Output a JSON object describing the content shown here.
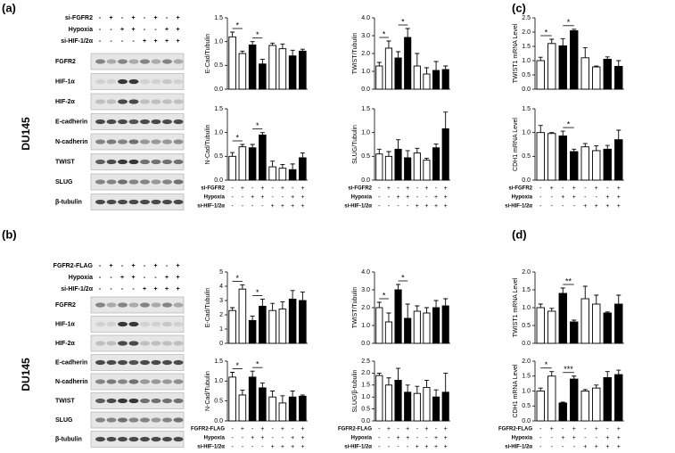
{
  "figure": {
    "panel_labels": [
      "(a)",
      "(b)",
      "(c)",
      "(d)"
    ],
    "blots": [
      {
        "cell_line": "DU145",
        "conditions": [
          {
            "label": "si-FGFR2",
            "signs": [
              "-",
              "+",
              "-",
              "+",
              "-",
              "+",
              "-",
              "+"
            ]
          },
          {
            "label": "Hypoxia",
            "signs": [
              "-",
              "-",
              "+",
              "+",
              "-",
              "-",
              "+",
              "+"
            ]
          },
          {
            "label": "si-HIF-1/2α",
            "signs": [
              "-",
              "-",
              "-",
              "-",
              "+",
              "+",
              "+",
              "+"
            ]
          }
        ],
        "rows": [
          "FGFR2",
          "HIF-1α",
          "HIF-2α",
          "E-cadherin",
          "N-cadherin",
          "TWIST",
          "SLUG",
          "β-tubulin"
        ]
      },
      {
        "cell_line": "DU145",
        "conditions": [
          {
            "label": "FGFR2-FLAG",
            "signs": [
              "-",
              "+",
              "-",
              "+",
              "-",
              "+",
              "-",
              "+"
            ]
          },
          {
            "label": "Hypoxia",
            "signs": [
              "-",
              "-",
              "+",
              "+",
              "-",
              "-",
              "+",
              "+"
            ]
          },
          {
            "label": "si-HIF-1/2α",
            "signs": [
              "-",
              "-",
              "-",
              "-",
              "+",
              "+",
              "+",
              "+"
            ]
          }
        ],
        "rows": [
          "FGFR2",
          "HIF-1α",
          "HIF-2α",
          "E-cadherin",
          "N-cadherin",
          "TWIST",
          "SLUG",
          "β-tubulin"
        ]
      }
    ]
  },
  "chart_data": [
    {
      "type": "bar",
      "ylabel": "E-Cad/Tubulin",
      "values": [
        1.1,
        0.75,
        0.93,
        0.53,
        0.92,
        0.85,
        0.7,
        0.8
      ],
      "errors": [
        0.1,
        0.05,
        0.07,
        0.1,
        0.05,
        0.1,
        0.12,
        0.04
      ],
      "colors": [
        "#ffffff",
        "#ffffff",
        "#000000",
        "#000000",
        "#ffffff",
        "#ffffff",
        "#000000",
        "#000000"
      ],
      "ylim": [
        0,
        1.5
      ],
      "yticks": [
        {
          "value": 0,
          "label": "0.0"
        },
        {
          "value": 0.5,
          "label": "0.5"
        },
        {
          "value": 1,
          "label": "1.0"
        },
        {
          "value": 1.5,
          "label": "1.5"
        }
      ],
      "annotations": [
        {
          "text": "*",
          "from": 0,
          "to": 1
        },
        {
          "text": "*",
          "from": 2,
          "to": 3
        }
      ]
    },
    {
      "type": "bar",
      "ylabel": "TWIST/Tubulin",
      "values": [
        1.3,
        2.3,
        1.75,
        2.9,
        1.3,
        0.85,
        1.05,
        1.1
      ],
      "errors": [
        0.2,
        0.4,
        0.35,
        0.5,
        0.7,
        0.35,
        0.5,
        0.2
      ],
      "colors": [
        "#ffffff",
        "#ffffff",
        "#000000",
        "#000000",
        "#ffffff",
        "#ffffff",
        "#000000",
        "#000000"
      ],
      "ylim": [
        0,
        4
      ],
      "yticks": [
        {
          "value": 0,
          "label": "0.0"
        },
        {
          "value": 1,
          "label": "1.0"
        },
        {
          "value": 2,
          "label": "2.0"
        },
        {
          "value": 3,
          "label": "3.0"
        },
        {
          "value": 4,
          "label": "4.0"
        }
      ],
      "annotations": [
        {
          "text": "*",
          "from": 0,
          "to": 1
        },
        {
          "text": "*",
          "from": 2,
          "to": 3
        }
      ]
    },
    {
      "type": "bar",
      "ylabel": "N-Cad/Tubulin",
      "values": [
        0.5,
        0.7,
        0.68,
        0.95,
        0.28,
        0.25,
        0.22,
        0.47
      ],
      "errors": [
        0.08,
        0.05,
        0.07,
        0.05,
        0.12,
        0.08,
        0.12,
        0.1
      ],
      "colors": [
        "#ffffff",
        "#ffffff",
        "#000000",
        "#000000",
        "#ffffff",
        "#ffffff",
        "#000000",
        "#000000"
      ],
      "ylim": [
        0,
        1.5
      ],
      "yticks": [
        {
          "value": 0,
          "label": "0.0"
        },
        {
          "value": 0.5,
          "label": "0.5"
        },
        {
          "value": 1,
          "label": "1.0"
        },
        {
          "value": 1.5,
          "label": "1.5"
        }
      ],
      "annotations": [
        {
          "text": "*",
          "from": 0,
          "to": 1
        },
        {
          "text": "*",
          "from": 2,
          "to": 3
        }
      ],
      "conditions": [
        {
          "label": "si-FGFR2",
          "signs": [
            "-",
            "+",
            "-",
            "+",
            "-",
            "+",
            "-",
            "+"
          ]
        },
        {
          "label": "Hypoxia",
          "signs": [
            "-",
            "-",
            "+",
            "+",
            "-",
            "-",
            "+",
            "+"
          ]
        },
        {
          "label": "si-HIF-1/2α",
          "signs": [
            "-",
            "-",
            "-",
            "-",
            "+",
            "+",
            "+",
            "+"
          ]
        }
      ]
    },
    {
      "type": "bar",
      "ylabel": "SLUG/Tubulin",
      "values": [
        0.55,
        0.5,
        0.65,
        0.47,
        0.57,
        0.42,
        0.68,
        1.08
      ],
      "errors": [
        0.1,
        0.1,
        0.2,
        0.15,
        0.1,
        0.04,
        0.08,
        0.35
      ],
      "colors": [
        "#ffffff",
        "#ffffff",
        "#000000",
        "#000000",
        "#ffffff",
        "#ffffff",
        "#000000",
        "#000000"
      ],
      "ylim": [
        0,
        1.5
      ],
      "yticks": [
        {
          "value": 0,
          "label": "0.0"
        },
        {
          "value": 0.5,
          "label": "0.5"
        },
        {
          "value": 1,
          "label": "1.0"
        },
        {
          "value": 1.5,
          "label": "1.5"
        }
      ],
      "conditions": [
        {
          "label": "si-FGFR2",
          "signs": [
            "-",
            "+",
            "-",
            "+",
            "-",
            "+",
            "-",
            "+"
          ]
        },
        {
          "label": "Hypoxia",
          "signs": [
            "-",
            "-",
            "+",
            "+",
            "-",
            "-",
            "+",
            "+"
          ]
        },
        {
          "label": "si-HIF-1/2α",
          "signs": [
            "-",
            "-",
            "-",
            "-",
            "+",
            "+",
            "+",
            "+"
          ]
        }
      ]
    },
    {
      "type": "bar",
      "ylabel": "TWIST1 mRNA Level",
      "values": [
        1.0,
        1.6,
        1.52,
        2.05,
        1.1,
        0.78,
        1.05,
        0.8
      ],
      "errors": [
        0.12,
        0.15,
        0.25,
        0.05,
        0.35,
        0.03,
        0.08,
        0.2
      ],
      "colors": [
        "#ffffff",
        "#ffffff",
        "#000000",
        "#000000",
        "#ffffff",
        "#ffffff",
        "#000000",
        "#000000"
      ],
      "ylim": [
        0,
        2.5
      ],
      "yticks": [
        {
          "value": 0,
          "label": "0.0"
        },
        {
          "value": 0.5,
          "label": "0.5"
        },
        {
          "value": 1,
          "label": "1.0"
        },
        {
          "value": 1.5,
          "label": "1.5"
        },
        {
          "value": 2,
          "label": "2.0"
        },
        {
          "value": 2.5,
          "label": "2.5"
        }
      ],
      "annotations": [
        {
          "text": "*",
          "from": 0,
          "to": 1
        },
        {
          "text": "*",
          "from": 2,
          "to": 3
        }
      ]
    },
    {
      "type": "bar",
      "ylabel": "CDH1 mRNA Level",
      "values": [
        1.0,
        0.98,
        0.93,
        0.6,
        0.7,
        0.62,
        0.65,
        0.85
      ],
      "errors": [
        0.15,
        0.02,
        0.1,
        0.05,
        0.07,
        0.1,
        0.08,
        0.2
      ],
      "colors": [
        "#ffffff",
        "#ffffff",
        "#000000",
        "#000000",
        "#ffffff",
        "#ffffff",
        "#000000",
        "#000000"
      ],
      "ylim": [
        0,
        1.5
      ],
      "yticks": [
        {
          "value": 0,
          "label": "0.0"
        },
        {
          "value": 0.5,
          "label": "0.5"
        },
        {
          "value": 1,
          "label": "1.0"
        },
        {
          "value": 1.5,
          "label": "1.5"
        }
      ],
      "annotations": [
        {
          "text": "*",
          "from": 2,
          "to": 3
        }
      ],
      "conditions": [
        {
          "label": "si-FGFR2",
          "signs": [
            "-",
            "+",
            "-",
            "+",
            "-",
            "+",
            "-",
            "+"
          ]
        },
        {
          "label": "Hypoxia",
          "signs": [
            "-",
            "-",
            "+",
            "+",
            "-",
            "-",
            "+",
            "+"
          ]
        },
        {
          "label": "si-HIF-1/2α",
          "signs": [
            "-",
            "-",
            "-",
            "-",
            "+",
            "+",
            "+",
            "+"
          ]
        }
      ]
    },
    {
      "type": "bar",
      "ylabel": "E-Cad/Tubulin",
      "values": [
        2.3,
        3.8,
        1.6,
        2.6,
        2.3,
        2.4,
        3.1,
        3.0
      ],
      "errors": [
        0.2,
        0.3,
        0.3,
        0.5,
        0.5,
        0.5,
        0.6,
        0.6
      ],
      "colors": [
        "#ffffff",
        "#ffffff",
        "#000000",
        "#000000",
        "#ffffff",
        "#ffffff",
        "#000000",
        "#000000"
      ],
      "ylim": [
        0,
        5
      ],
      "yticks": [
        0,
        1,
        2,
        3,
        4,
        5
      ],
      "annotations": [
        {
          "text": "*",
          "from": 0,
          "to": 1
        },
        {
          "text": "*",
          "from": 2,
          "to": 3
        }
      ]
    },
    {
      "type": "bar",
      "ylabel": "TWIST/Tubulin",
      "values": [
        2.0,
        1.2,
        3.0,
        1.4,
        1.8,
        1.7,
        2.0,
        2.1
      ],
      "errors": [
        0.3,
        0.5,
        0.3,
        0.8,
        0.3,
        0.3,
        0.4,
        0.4
      ],
      "colors": [
        "#ffffff",
        "#ffffff",
        "#000000",
        "#000000",
        "#ffffff",
        "#ffffff",
        "#000000",
        "#000000"
      ],
      "ylim": [
        0,
        4
      ],
      "yticks": [
        {
          "value": 0,
          "label": "0.0"
        },
        {
          "value": 1,
          "label": "1.0"
        },
        {
          "value": 2,
          "label": "2.0"
        },
        {
          "value": 3,
          "label": "3.0"
        },
        {
          "value": 4,
          "label": "4.0"
        }
      ],
      "annotations": [
        {
          "text": "*",
          "from": 0,
          "to": 1
        },
        {
          "text": "*",
          "from": 2,
          "to": 3
        }
      ]
    },
    {
      "type": "bar",
      "ylabel": "N-Cad/Tubulin",
      "values": [
        1.1,
        0.65,
        1.1,
        0.83,
        0.6,
        0.45,
        0.6,
        0.62
      ],
      "errors": [
        0.12,
        0.12,
        0.15,
        0.12,
        0.15,
        0.18,
        0.15,
        0.03
      ],
      "colors": [
        "#ffffff",
        "#ffffff",
        "#000000",
        "#000000",
        "#ffffff",
        "#ffffff",
        "#000000",
        "#000000"
      ],
      "ylim": [
        0,
        1.5
      ],
      "yticks": [
        {
          "value": 0,
          "label": "0.0"
        },
        {
          "value": 0.5,
          "label": "0.5"
        },
        {
          "value": 1,
          "label": "1.0"
        },
        {
          "value": 1.5,
          "label": "1.5"
        }
      ],
      "annotations": [
        {
          "text": "*",
          "from": 0,
          "to": 1
        },
        {
          "text": "*",
          "from": 2,
          "to": 3
        }
      ],
      "conditions": [
        {
          "label": "FGFR2-FLAG",
          "signs": [
            "-",
            "+",
            "-",
            "+",
            "-",
            "+",
            "-",
            "+"
          ]
        },
        {
          "label": "Hypoxia",
          "signs": [
            "-",
            "-",
            "+",
            "+",
            "-",
            "-",
            "+",
            "+"
          ]
        },
        {
          "label": "si-HIF-1/2α",
          "signs": [
            "-",
            "-",
            "-",
            "-",
            "+",
            "+",
            "+",
            "+"
          ]
        }
      ]
    },
    {
      "type": "bar",
      "ylabel": "SLUG/β-tubulin",
      "values": [
        1.9,
        1.5,
        1.7,
        1.2,
        1.15,
        1.4,
        1.0,
        1.2
      ],
      "errors": [
        0.1,
        0.3,
        0.5,
        0.3,
        0.3,
        0.3,
        0.3,
        0.8
      ],
      "colors": [
        "#ffffff",
        "#ffffff",
        "#000000",
        "#000000",
        "#ffffff",
        "#ffffff",
        "#000000",
        "#000000"
      ],
      "ylim": [
        0,
        2.5
      ],
      "yticks": [
        {
          "value": 0,
          "label": "0.0"
        },
        {
          "value": 0.5,
          "label": "0.5"
        },
        {
          "value": 1,
          "label": "1.0"
        },
        {
          "value": 1.5,
          "label": "1.5"
        },
        {
          "value": 2,
          "label": "2.0"
        },
        {
          "value": 2.5,
          "label": "2.5"
        }
      ],
      "conditions": [
        {
          "label": "FGFR2-FLAG",
          "signs": [
            "-",
            "+",
            "-",
            "+",
            "-",
            "+",
            "-",
            "+"
          ]
        },
        {
          "label": "Hypoxia",
          "signs": [
            "-",
            "-",
            "+",
            "+",
            "-",
            "-",
            "+",
            "+"
          ]
        },
        {
          "label": "si-HIF-1/2α",
          "signs": [
            "-",
            "-",
            "-",
            "-",
            "+",
            "+",
            "+",
            "+"
          ]
        }
      ]
    },
    {
      "type": "bar",
      "ylabel": "TWIST1 mRNA Level",
      "values": [
        1.0,
        0.9,
        1.4,
        0.6,
        1.25,
        1.1,
        0.85,
        1.1
      ],
      "errors": [
        0.1,
        0.08,
        0.15,
        0.05,
        0.35,
        0.25,
        0.03,
        0.25
      ],
      "colors": [
        "#ffffff",
        "#ffffff",
        "#000000",
        "#000000",
        "#ffffff",
        "#ffffff",
        "#000000",
        "#000000"
      ],
      "ylim": [
        0,
        2
      ],
      "yticks": [
        {
          "value": 0,
          "label": "0.0"
        },
        {
          "value": 0.5,
          "label": "0.5"
        },
        {
          "value": 1,
          "label": "1.0"
        },
        {
          "value": 1.5,
          "label": "1.5"
        },
        {
          "value": 2,
          "label": "2.0"
        }
      ],
      "annotations": [
        {
          "text": "**",
          "from": 2,
          "to": 3
        }
      ]
    },
    {
      "type": "bar",
      "ylabel": "CDH1 mRNA Level",
      "values": [
        1.0,
        1.5,
        0.6,
        1.4,
        1.0,
        1.1,
        1.45,
        1.55
      ],
      "errors": [
        0.1,
        0.15,
        0.03,
        0.1,
        0.05,
        0.1,
        0.2,
        0.15
      ],
      "colors": [
        "#ffffff",
        "#ffffff",
        "#000000",
        "#000000",
        "#ffffff",
        "#ffffff",
        "#000000",
        "#000000"
      ],
      "ylim": [
        0,
        2
      ],
      "yticks": [
        {
          "value": 0,
          "label": "0.0"
        },
        {
          "value": 0.5,
          "label": "0.5"
        },
        {
          "value": 1,
          "label": "1.0"
        },
        {
          "value": 1.5,
          "label": "1.5"
        },
        {
          "value": 2,
          "label": "2.0"
        }
      ],
      "annotations": [
        {
          "text": "*",
          "from": 0,
          "to": 1
        },
        {
          "text": "***",
          "from": 2,
          "to": 3
        }
      ],
      "conditions": [
        {
          "label": "FGFR2-FLAG",
          "signs": [
            "-",
            "+",
            "-",
            "+",
            "-",
            "+",
            "-",
            "+"
          ]
        },
        {
          "label": "Hypoxia",
          "signs": [
            "-",
            "-",
            "+",
            "+",
            "-",
            "-",
            "+",
            "+"
          ]
        },
        {
          "label": "si-HIF-1/2α",
          "signs": [
            "-",
            "-",
            "-",
            "-",
            "+",
            "+",
            "+",
            "+"
          ]
        }
      ]
    }
  ]
}
